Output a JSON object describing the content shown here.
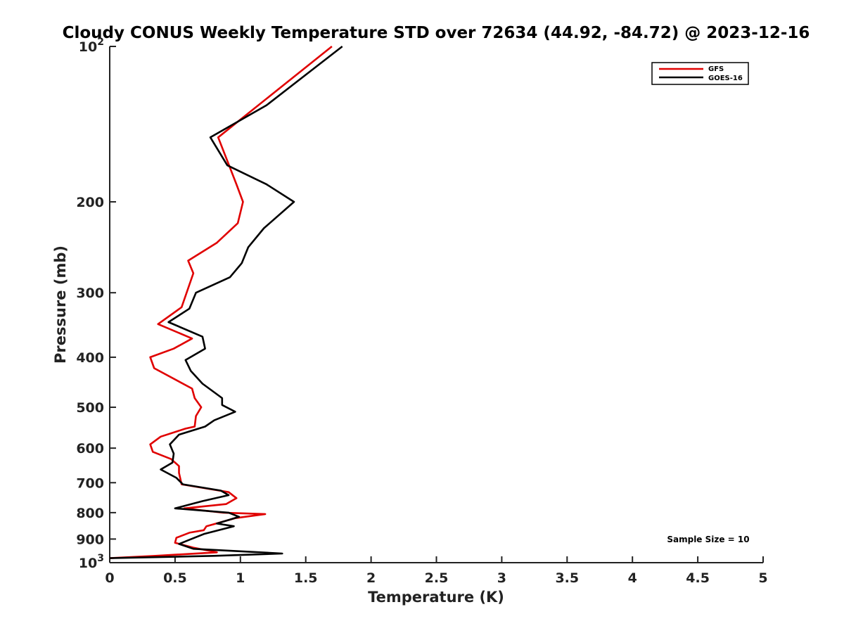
{
  "chart_data": {
    "type": "line",
    "title": "Cloudy CONUS Weekly Temperature STD over 72634 (44.92, -84.72) @ 2023-12-16",
    "xlabel": "Temperature (K)",
    "ylabel": "Pressure (mb)",
    "xlim": [
      0,
      5
    ],
    "ylim": [
      100,
      1000
    ],
    "y_scale": "log",
    "y_reversed": true,
    "x_ticks": [
      "0",
      "0.5",
      "1",
      "1.5",
      "2",
      "2.5",
      "3",
      "3.5",
      "4",
      "4.5",
      "5"
    ],
    "y_ticks": [
      {
        "value": 100,
        "label": "10",
        "exp": "2"
      },
      {
        "value": 200,
        "label": "200"
      },
      {
        "value": 300,
        "label": "300"
      },
      {
        "value": 400,
        "label": "400"
      },
      {
        "value": 500,
        "label": "500"
      },
      {
        "value": 600,
        "label": "600"
      },
      {
        "value": 700,
        "label": "700"
      },
      {
        "value": 800,
        "label": "800"
      },
      {
        "value": 900,
        "label": "900"
      },
      {
        "value": 1000,
        "label": "10",
        "exp": "3"
      }
    ],
    "grid": false,
    "legend_position": "top-right",
    "annotation": "Sample Size = 10",
    "series": [
      {
        "name": "GFS",
        "color": "#e00000",
        "points": [
          [
            1.7,
            100
          ],
          [
            0.83,
            150
          ],
          [
            0.97,
            185
          ],
          [
            1.02,
            200
          ],
          [
            0.98,
            220
          ],
          [
            0.82,
            240
          ],
          [
            0.6,
            260
          ],
          [
            0.64,
            275
          ],
          [
            0.55,
            320
          ],
          [
            0.37,
            345
          ],
          [
            0.63,
            368
          ],
          [
            0.49,
            385
          ],
          [
            0.31,
            400
          ],
          [
            0.34,
            420
          ],
          [
            0.63,
            460
          ],
          [
            0.65,
            480
          ],
          [
            0.7,
            500
          ],
          [
            0.66,
            520
          ],
          [
            0.65,
            545
          ],
          [
            0.58,
            550
          ],
          [
            0.39,
            570
          ],
          [
            0.31,
            590
          ],
          [
            0.33,
            610
          ],
          [
            0.47,
            630
          ],
          [
            0.53,
            650
          ],
          [
            0.53,
            670
          ],
          [
            0.55,
            705
          ],
          [
            0.91,
            730
          ],
          [
            0.97,
            750
          ],
          [
            0.89,
            770
          ],
          [
            0.57,
            785
          ],
          [
            0.87,
            800
          ],
          [
            1.19,
            805
          ],
          [
            0.96,
            820
          ],
          [
            0.74,
            850
          ],
          [
            0.72,
            865
          ],
          [
            0.61,
            875
          ],
          [
            0.51,
            895
          ],
          [
            0.5,
            915
          ],
          [
            0.64,
            935
          ],
          [
            0.82,
            955
          ],
          [
            0.35,
            970
          ],
          [
            0.0,
            980
          ]
        ]
      },
      {
        "name": "GOES-16",
        "color": "#000000",
        "points": [
          [
            1.78,
            100
          ],
          [
            1.2,
            130
          ],
          [
            0.77,
            150
          ],
          [
            0.9,
            170
          ],
          [
            1.2,
            185
          ],
          [
            1.41,
            200
          ],
          [
            1.18,
            225
          ],
          [
            1.06,
            245
          ],
          [
            1.01,
            263
          ],
          [
            0.92,
            280
          ],
          [
            0.66,
            300
          ],
          [
            0.61,
            322
          ],
          [
            0.45,
            342
          ],
          [
            0.71,
            365
          ],
          [
            0.73,
            385
          ],
          [
            0.58,
            405
          ],
          [
            0.62,
            425
          ],
          [
            0.71,
            450
          ],
          [
            0.86,
            480
          ],
          [
            0.86,
            495
          ],
          [
            0.96,
            510
          ],
          [
            0.8,
            530
          ],
          [
            0.73,
            545
          ],
          [
            0.53,
            565
          ],
          [
            0.46,
            590
          ],
          [
            0.49,
            615
          ],
          [
            0.48,
            640
          ],
          [
            0.39,
            660
          ],
          [
            0.51,
            685
          ],
          [
            0.56,
            705
          ],
          [
            0.85,
            725
          ],
          [
            0.91,
            740
          ],
          [
            0.71,
            760
          ],
          [
            0.5,
            785
          ],
          [
            0.91,
            800
          ],
          [
            0.99,
            815
          ],
          [
            0.82,
            840
          ],
          [
            0.95,
            850
          ],
          [
            0.72,
            880
          ],
          [
            0.6,
            905
          ],
          [
            0.53,
            920
          ],
          [
            0.64,
            940
          ],
          [
            1.32,
            960
          ],
          [
            0.8,
            970
          ],
          [
            0.0,
            980
          ]
        ]
      }
    ]
  }
}
